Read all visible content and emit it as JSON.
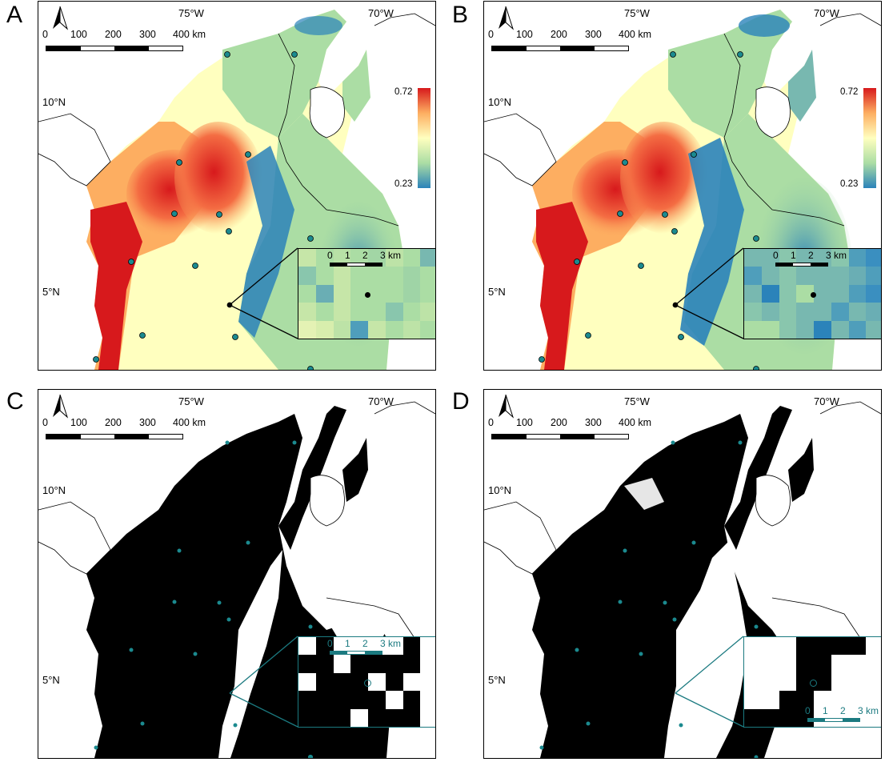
{
  "panels": [
    {
      "id": "A",
      "letter": "A",
      "type": "continuous"
    },
    {
      "id": "B",
      "letter": "B",
      "type": "continuous"
    },
    {
      "id": "C",
      "letter": "C",
      "type": "binary"
    },
    {
      "id": "D",
      "letter": "D",
      "type": "binary"
    }
  ],
  "axes": {
    "lon_labels": [
      "75°W",
      "70°W"
    ],
    "lat_labels": [
      "10°N",
      "5°N"
    ]
  },
  "scale_bar": {
    "labels": [
      "0",
      "100",
      "200",
      "300",
      "400 km"
    ]
  },
  "inset_scale": {
    "labels": [
      "0",
      "1",
      "2",
      "3 km"
    ]
  },
  "legend": {
    "max": "0.72",
    "min": "0.23",
    "colors": [
      "#d7191c",
      "#fdae61",
      "#ffffbf",
      "#abdda4",
      "#2b83ba"
    ]
  },
  "colors": {
    "point_fill": "#1b8a8f",
    "inset_border_binary": "#1b7a80",
    "land_black": "#000000"
  }
}
